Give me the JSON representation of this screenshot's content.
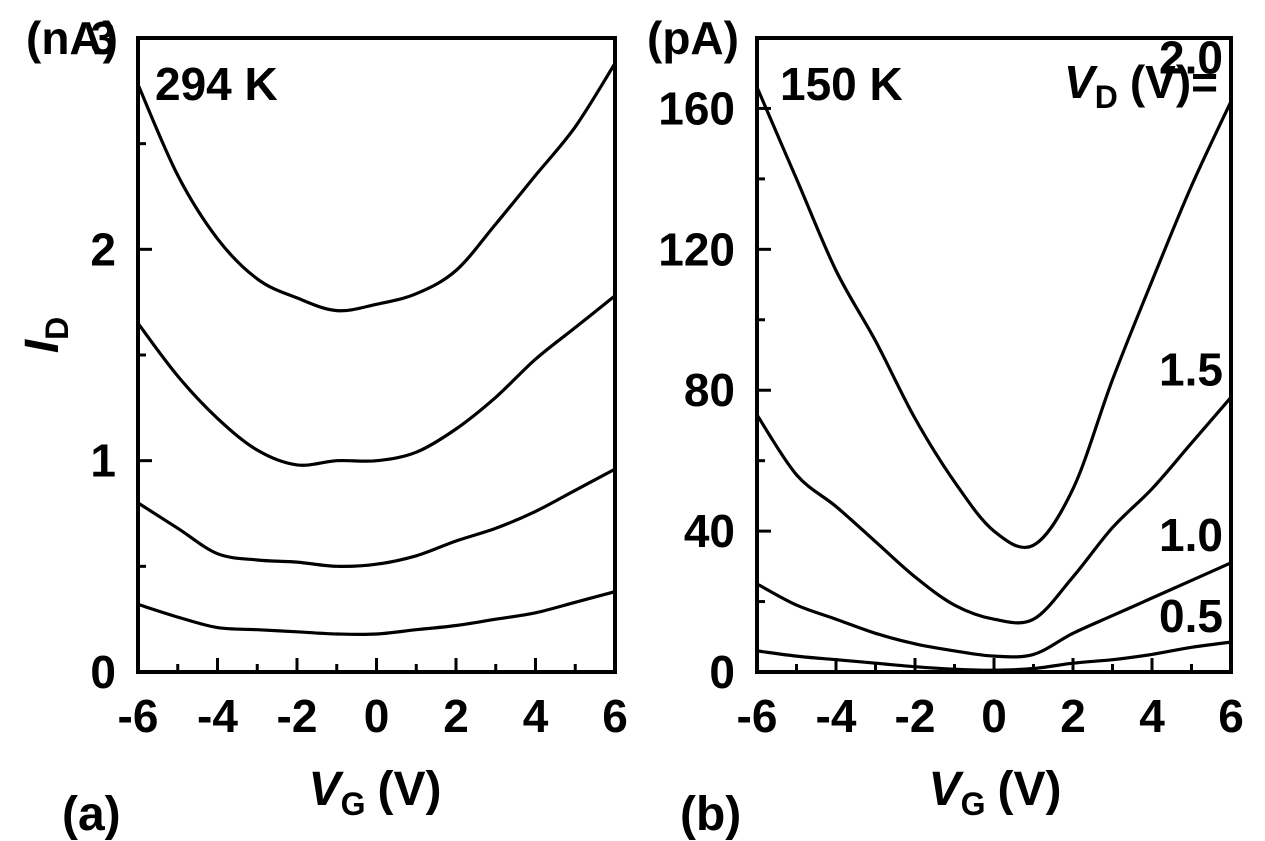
{
  "chart_data": [
    {
      "panel": "(a)",
      "type": "line",
      "annotation": "294 K",
      "xlabel": {
        "symbol": "V",
        "subscript": "G",
        "unit": "(V)"
      },
      "ylabel": {
        "symbol": "I",
        "subscript": "D"
      },
      "y_unit": "(nA)",
      "xlim": [
        -6,
        6
      ],
      "ylim": [
        0,
        3.0
      ],
      "x_ticks": [
        -6,
        -4,
        -2,
        0,
        2,
        4,
        6
      ],
      "x_tick_labels": [
        "-6",
        "-4",
        "-2",
        "0",
        "2",
        "4",
        "6"
      ],
      "x_minor_ticks": [
        -5,
        -3,
        -1,
        1,
        3,
        5
      ],
      "y_ticks": [
        0,
        1,
        2,
        3
      ],
      "y_tick_labels": [
        "0",
        "1",
        "2",
        "3"
      ],
      "y_minor_ticks": [
        0.5,
        1.5,
        2.5
      ],
      "x": [
        -6,
        -5,
        -4,
        -3,
        -2,
        -1,
        0,
        1,
        2,
        3,
        4,
        5,
        6
      ],
      "series": [
        {
          "values": [
            0.32,
            0.26,
            0.21,
            0.2,
            0.19,
            0.18,
            0.18,
            0.2,
            0.22,
            0.25,
            0.28,
            0.33,
            0.38
          ]
        },
        {
          "values": [
            0.8,
            0.68,
            0.56,
            0.53,
            0.52,
            0.5,
            0.51,
            0.55,
            0.62,
            0.68,
            0.76,
            0.86,
            0.96
          ]
        },
        {
          "values": [
            1.65,
            1.4,
            1.2,
            1.05,
            0.98,
            1.0,
            1.0,
            1.04,
            1.15,
            1.3,
            1.48,
            1.63,
            1.78
          ]
        },
        {
          "values": [
            2.78,
            2.35,
            2.05,
            1.86,
            1.77,
            1.71,
            1.74,
            1.79,
            1.9,
            2.12,
            2.35,
            2.58,
            2.88
          ]
        }
      ]
    },
    {
      "panel": "(b)",
      "type": "line",
      "annotation": "150 K",
      "legend_title": {
        "symbol": "V",
        "subscript": "D",
        "text": "(V)="
      },
      "xlabel": {
        "symbol": "V",
        "subscript": "G",
        "unit": "(V)"
      },
      "y_unit": "(pA)",
      "xlim": [
        -6,
        6
      ],
      "ylim": [
        0,
        180
      ],
      "x_ticks": [
        -6,
        -4,
        -2,
        0,
        2,
        4,
        6
      ],
      "x_tick_labels": [
        "-6",
        "-4",
        "-2",
        "0",
        "2",
        "4",
        "6"
      ],
      "x_minor_ticks": [
        -5,
        -3,
        -1,
        1,
        3,
        5
      ],
      "y_ticks": [
        0,
        40,
        80,
        120,
        160
      ],
      "y_tick_labels": [
        "0",
        "40",
        "80",
        "120",
        "160"
      ],
      "y_minor_ticks": [
        20,
        60,
        100,
        140
      ],
      "x": [
        -6,
        -5,
        -4,
        -3,
        -2,
        -1,
        0,
        1,
        2,
        3,
        4,
        5,
        6
      ],
      "series": [
        {
          "name": "0.5",
          "values": [
            6,
            4.5,
            3.5,
            2.5,
            1.5,
            0.8,
            0.5,
            1.0,
            2.5,
            3.5,
            5.0,
            7.0,
            8.5
          ],
          "values_x_note": ""
        },
        {
          "name": "1.0",
          "values": [
            25,
            19,
            15,
            11,
            8,
            6,
            4.5,
            5,
            11,
            16,
            21,
            26,
            31
          ]
        },
        {
          "name": "1.5",
          "values": [
            73,
            56,
            47,
            37,
            27,
            19,
            15,
            15,
            27,
            41,
            52,
            65,
            78
          ]
        },
        {
          "name": "2.0",
          "values": [
            166,
            140,
            114,
            94,
            72,
            54,
            40,
            36,
            52,
            83,
            111,
            138,
            162
          ]
        }
      ]
    }
  ]
}
